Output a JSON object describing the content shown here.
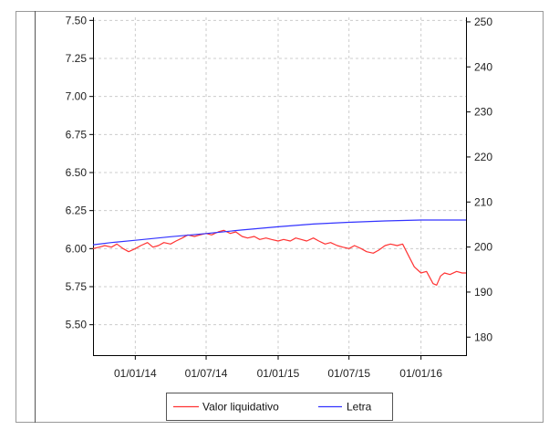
{
  "chart_data": {
    "type": "line",
    "x_type": "date",
    "title": "",
    "xlabel": "",
    "ylabel": "",
    "y2label": "",
    "xlim": [
      "2013-09-15",
      "2016-04-25"
    ],
    "ylim": [
      5.3,
      7.52
    ],
    "y2lim": [
      176,
      251
    ],
    "grid": true,
    "legend_position": "bottom",
    "x_ticks": [
      {
        "value": "2014-01-01",
        "label": "01/01/14"
      },
      {
        "value": "2014-07-01",
        "label": "01/07/14"
      },
      {
        "value": "2015-01-01",
        "label": "01/01/15"
      },
      {
        "value": "2015-07-01",
        "label": "01/07/15"
      },
      {
        "value": "2016-01-01",
        "label": "01/01/16"
      }
    ],
    "y_ticks": [
      {
        "value": 5.5,
        "label": "5.50"
      },
      {
        "value": 5.75,
        "label": "5.75"
      },
      {
        "value": 6.0,
        "label": "6.00"
      },
      {
        "value": 6.25,
        "label": "6.25"
      },
      {
        "value": 6.5,
        "label": "6.50"
      },
      {
        "value": 6.75,
        "label": "6.75"
      },
      {
        "value": 7.0,
        "label": "7.00"
      },
      {
        "value": 7.25,
        "label": "7.25"
      },
      {
        "value": 7.5,
        "label": "7.50"
      }
    ],
    "y2_ticks": [
      {
        "value": 180,
        "label": "180"
      },
      {
        "value": 190,
        "label": "190"
      },
      {
        "value": 200,
        "label": "200"
      },
      {
        "value": 210,
        "label": "210"
      },
      {
        "value": 220,
        "label": "220"
      },
      {
        "value": 230,
        "label": "230"
      },
      {
        "value": 240,
        "label": "240"
      },
      {
        "value": 250,
        "label": "250"
      }
    ],
    "series": [
      {
        "name": "Valor liquidativo",
        "axis": "left",
        "color": "#ff3333",
        "points": [
          [
            "2013-09-15",
            6.0
          ],
          [
            "2013-10-01",
            6.01
          ],
          [
            "2013-10-15",
            6.02
          ],
          [
            "2013-11-01",
            6.01
          ],
          [
            "2013-11-15",
            6.03
          ],
          [
            "2013-12-01",
            6.0
          ],
          [
            "2013-12-15",
            5.98
          ],
          [
            "2014-01-01",
            6.0
          ],
          [
            "2014-01-15",
            6.02
          ],
          [
            "2014-02-01",
            6.04
          ],
          [
            "2014-02-15",
            6.01
          ],
          [
            "2014-03-01",
            6.02
          ],
          [
            "2014-03-15",
            6.04
          ],
          [
            "2014-04-01",
            6.03
          ],
          [
            "2014-04-15",
            6.05
          ],
          [
            "2014-05-01",
            6.07
          ],
          [
            "2014-05-15",
            6.09
          ],
          [
            "2014-06-01",
            6.08
          ],
          [
            "2014-06-15",
            6.09
          ],
          [
            "2014-07-01",
            6.1
          ],
          [
            "2014-07-15",
            6.09
          ],
          [
            "2014-08-01",
            6.11
          ],
          [
            "2014-08-15",
            6.12
          ],
          [
            "2014-09-01",
            6.1
          ],
          [
            "2014-09-15",
            6.11
          ],
          [
            "2014-10-01",
            6.08
          ],
          [
            "2014-10-15",
            6.07
          ],
          [
            "2014-11-01",
            6.08
          ],
          [
            "2014-11-15",
            6.06
          ],
          [
            "2014-12-01",
            6.07
          ],
          [
            "2014-12-15",
            6.06
          ],
          [
            "2015-01-01",
            6.05
          ],
          [
            "2015-01-15",
            6.06
          ],
          [
            "2015-02-01",
            6.05
          ],
          [
            "2015-02-15",
            6.07
          ],
          [
            "2015-03-01",
            6.06
          ],
          [
            "2015-03-15",
            6.05
          ],
          [
            "2015-04-01",
            6.07
          ],
          [
            "2015-04-15",
            6.05
          ],
          [
            "2015-05-01",
            6.03
          ],
          [
            "2015-05-15",
            6.04
          ],
          [
            "2015-06-01",
            6.02
          ],
          [
            "2015-06-15",
            6.01
          ],
          [
            "2015-07-01",
            6.0
          ],
          [
            "2015-07-15",
            6.02
          ],
          [
            "2015-08-01",
            6.0
          ],
          [
            "2015-08-15",
            5.98
          ],
          [
            "2015-09-01",
            5.97
          ],
          [
            "2015-09-15",
            5.99
          ],
          [
            "2015-10-01",
            6.02
          ],
          [
            "2015-10-15",
            6.03
          ],
          [
            "2015-11-01",
            6.02
          ],
          [
            "2015-11-15",
            6.03
          ],
          [
            "2015-12-01",
            5.95
          ],
          [
            "2015-12-15",
            5.88
          ],
          [
            "2016-01-01",
            5.84
          ],
          [
            "2016-01-15",
            5.85
          ],
          [
            "2016-02-01",
            5.77
          ],
          [
            "2016-02-10",
            5.76
          ],
          [
            "2016-02-20",
            5.82
          ],
          [
            "2016-03-01",
            5.84
          ],
          [
            "2016-03-15",
            5.83
          ],
          [
            "2016-04-01",
            5.85
          ],
          [
            "2016-04-15",
            5.84
          ],
          [
            "2016-04-25",
            5.84
          ]
        ]
      },
      {
        "name": "Letra",
        "axis": "right",
        "color": "#3333ff",
        "points": [
          [
            "2013-09-15",
            200.5
          ],
          [
            "2013-11-01",
            201.0
          ],
          [
            "2014-01-01",
            201.5
          ],
          [
            "2014-04-01",
            202.3
          ],
          [
            "2014-07-01",
            203.0
          ],
          [
            "2014-10-01",
            203.8
          ],
          [
            "2015-01-01",
            204.5
          ],
          [
            "2015-04-01",
            205.1
          ],
          [
            "2015-07-01",
            205.5
          ],
          [
            "2015-10-01",
            205.8
          ],
          [
            "2016-01-01",
            206.0
          ],
          [
            "2016-04-25",
            206.0
          ]
        ]
      }
    ]
  }
}
